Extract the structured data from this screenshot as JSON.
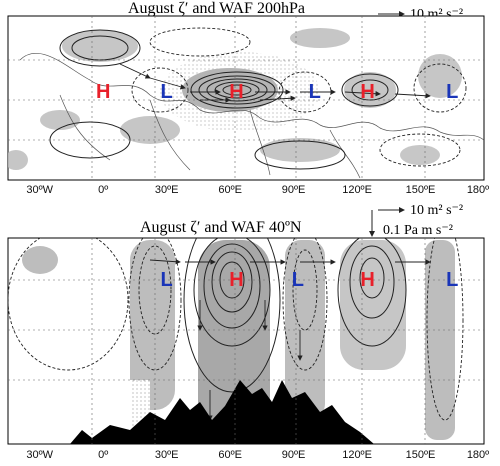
{
  "panels": [
    {
      "title": "August ζ′ and WAF 200hPa",
      "ref_arrow": "10 m² s⁻²",
      "labels": [
        {
          "text": "H",
          "lon": 0,
          "color": "#e8202a"
        },
        {
          "text": "L",
          "lon": 30,
          "color": "#1a35b8"
        },
        {
          "text": "H",
          "lon": 63,
          "color": "#e8202a"
        },
        {
          "text": "L",
          "lon": 100,
          "color": "#1a35b8"
        },
        {
          "text": "H",
          "lon": 125,
          "color": "#e8202a"
        },
        {
          "text": "L",
          "lon": 165,
          "color": "#1a35b8"
        }
      ]
    },
    {
      "title": "August ζ′ and WAF 40ºN",
      "ref_arrow": "10 m² s⁻²",
      "ref_arrow_vertical": "0.1 Pa m s⁻²",
      "labels": [
        {
          "text": "L",
          "lon": 30,
          "color": "#1a35b8"
        },
        {
          "text": "H",
          "lon": 63,
          "color": "#e8202a"
        },
        {
          "text": "L",
          "lon": 92,
          "color": "#1a35b8"
        },
        {
          "text": "H",
          "lon": 125,
          "color": "#e8202a"
        },
        {
          "text": "L",
          "lon": 165,
          "color": "#1a35b8"
        }
      ]
    }
  ],
  "x_ticks": [
    "30ºW",
    "0º",
    "30ºE",
    "60ºE",
    "90ºE",
    "120ºE",
    "150ºE",
    "180º"
  ]
}
